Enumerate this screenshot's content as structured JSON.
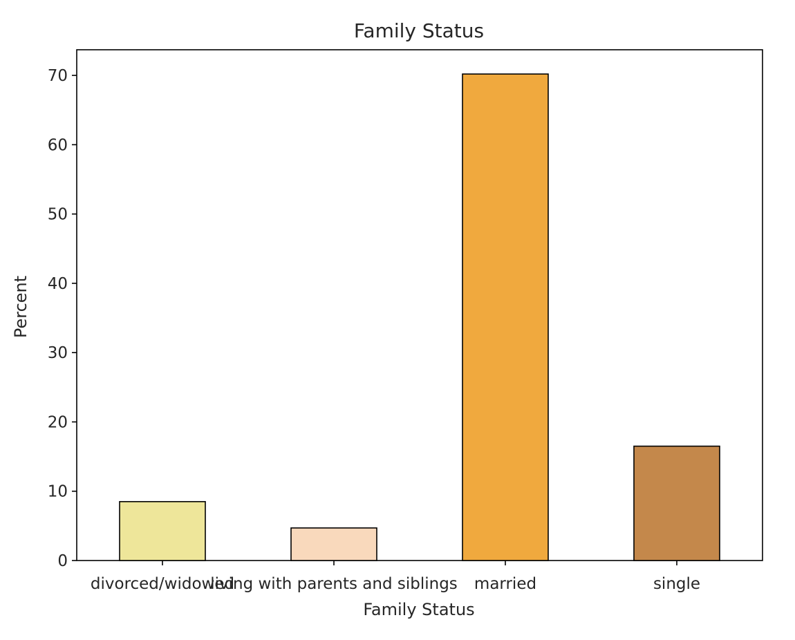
{
  "chart_data": {
    "type": "bar",
    "title": "Family Status",
    "xlabel": "Family Status",
    "ylabel": "Percent",
    "categories": [
      "divorced/widowed",
      "living with parents and siblings",
      "married",
      "single"
    ],
    "values": [
      8.5,
      4.7,
      70.2,
      16.5
    ],
    "colors": [
      "#EEE69A",
      "#F9D9BC",
      "#F0A93E",
      "#C4884B"
    ],
    "yticks": [
      0,
      10,
      20,
      30,
      40,
      50,
      60,
      70
    ],
    "ylim": [
      0,
      73.7
    ],
    "grid": false,
    "legend": "none"
  }
}
